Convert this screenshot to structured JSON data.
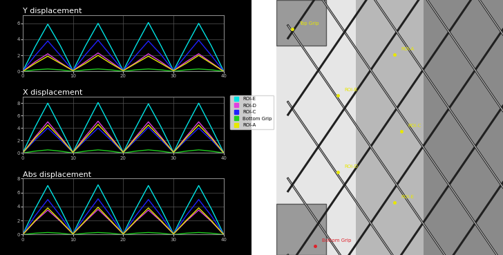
{
  "chart_data": [
    {
      "type": "line",
      "title": "Y displacement",
      "x": [
        0,
        2.5,
        5,
        7.5,
        10,
        12.5,
        15,
        17.5,
        20,
        22.5,
        25,
        27.5,
        30,
        32.5,
        35,
        37.5,
        40
      ],
      "xlim": [
        0,
        40
      ],
      "xticks": [
        0,
        10,
        20,
        30,
        40
      ],
      "ylim": [
        0,
        7
      ],
      "yticks": [
        0,
        2,
        4,
        6
      ],
      "grid": true,
      "series": [
        {
          "values": [
            0,
            3.1,
            5.9,
            3.2,
            0.1,
            3.2,
            6.0,
            3.1,
            0.1,
            3.2,
            6.1,
            3.2,
            0.1,
            3.1,
            6.0,
            3.2,
            0
          ]
        },
        {
          "values": [
            0,
            1.2,
            2.2,
            1.1,
            0.1,
            1.2,
            2.3,
            1.2,
            0.1,
            1.1,
            2.2,
            1.2,
            0.1,
            1.2,
            2.2,
            1.1,
            0
          ]
        },
        {
          "values": [
            0,
            2.0,
            3.8,
            2.0,
            0.1,
            2.1,
            3.9,
            2.0,
            0.1,
            2.0,
            3.8,
            2.1,
            0.1,
            2.0,
            3.9,
            2.0,
            0
          ]
        },
        {
          "values": [
            0,
            0.2,
            0.3,
            0.2,
            0,
            0.2,
            0.3,
            0.2,
            0,
            0.2,
            0.3,
            0.2,
            0,
            0.2,
            0.3,
            0.2,
            0
          ]
        },
        {
          "values": [
            0,
            1.0,
            1.9,
            1.0,
            0.1,
            1.0,
            2.0,
            1.0,
            0.1,
            1.0,
            1.9,
            1.0,
            0.1,
            1.0,
            2.0,
            1.0,
            0
          ]
        }
      ]
    },
    {
      "type": "line",
      "title": "X displacement",
      "x": [
        0,
        2.5,
        5,
        7.5,
        10,
        12.5,
        15,
        17.5,
        20,
        22.5,
        25,
        27.5,
        30,
        32.5,
        35,
        37.5,
        40
      ],
      "xlim": [
        0,
        40
      ],
      "xticks": [
        0,
        10,
        20,
        30,
        40
      ],
      "ylim": [
        0,
        9
      ],
      "yticks": [
        0,
        2,
        4,
        6,
        8
      ],
      "grid": true,
      "series": [
        {
          "values": [
            0,
            4.2,
            8.0,
            4.1,
            0.1,
            4.2,
            8.1,
            4.2,
            0.1,
            4.1,
            7.9,
            4.2,
            0.1,
            4.2,
            8.0,
            4.1,
            0
          ]
        },
        {
          "values": [
            0,
            2.6,
            5.0,
            2.6,
            0.1,
            2.7,
            5.1,
            2.6,
            0.1,
            2.6,
            5.0,
            2.6,
            0.1,
            2.6,
            5.0,
            2.6,
            0
          ]
        },
        {
          "values": [
            0,
            2.1,
            4.0,
            2.1,
            0.1,
            2.1,
            4.0,
            2.1,
            0.1,
            2.1,
            4.1,
            2.1,
            0.1,
            2.1,
            4.0,
            2.1,
            0
          ]
        },
        {
          "values": [
            0,
            0.3,
            0.5,
            0.3,
            0,
            0.3,
            0.5,
            0.3,
            0,
            0.3,
            0.5,
            0.3,
            0,
            0.3,
            0.5,
            0.3,
            0
          ]
        },
        {
          "values": [
            0,
            2.4,
            4.5,
            2.4,
            0.1,
            2.4,
            4.6,
            2.4,
            0.1,
            2.4,
            4.5,
            2.4,
            0.1,
            2.4,
            4.5,
            2.4,
            0
          ]
        }
      ]
    },
    {
      "type": "line",
      "title": "Abs displacement",
      "x": [
        0,
        2.5,
        5,
        7.5,
        10,
        12.5,
        15,
        17.5,
        20,
        22.5,
        25,
        27.5,
        30,
        32.5,
        35,
        37.5,
        40
      ],
      "xlim": [
        0,
        40
      ],
      "xticks": [
        0,
        10,
        20,
        30,
        40
      ],
      "ylim": [
        0,
        8
      ],
      "yticks": [
        0,
        2,
        4,
        6,
        8
      ],
      "grid": true,
      "series": [
        {
          "values": [
            0,
            3.7,
            7.0,
            3.7,
            0.1,
            3.7,
            7.1,
            3.7,
            0.1,
            3.7,
            7.0,
            3.7,
            0.1,
            3.7,
            7.0,
            3.7,
            0
          ]
        },
        {
          "values": [
            0,
            1.9,
            3.5,
            1.9,
            0.1,
            1.9,
            3.6,
            1.9,
            0.1,
            1.9,
            3.5,
            1.9,
            0.1,
            1.9,
            3.5,
            1.9,
            0
          ]
        },
        {
          "values": [
            0,
            2.7,
            5.0,
            2.7,
            0.1,
            2.7,
            5.1,
            2.7,
            0.1,
            2.7,
            5.0,
            2.7,
            0.1,
            2.7,
            5.0,
            2.7,
            0
          ]
        },
        {
          "values": [
            0,
            0.2,
            0.3,
            0.2,
            0,
            0.2,
            0.3,
            0.2,
            0,
            0.2,
            0.3,
            0.2,
            0,
            0.2,
            0.3,
            0.2,
            0
          ]
        },
        {
          "values": [
            0,
            2.0,
            3.8,
            2.0,
            0.1,
            2.0,
            3.9,
            2.0,
            0.1,
            2.0,
            3.8,
            2.0,
            0.1,
            2.0,
            3.8,
            2.0,
            0
          ]
        }
      ]
    }
  ],
  "legend": "center left",
  "legend_entries": [
    {
      "name": "ROI-E",
      "color": "#00e5e5"
    },
    {
      "name": "ROI-D",
      "color": "#e040e0"
    },
    {
      "name": "ROI-C",
      "color": "#2020ff"
    },
    {
      "name": "Bottom Grip",
      "color": "#20d020"
    },
    {
      "name": "ROI-A",
      "color": "#e8e800"
    }
  ],
  "photo": {
    "labels": [
      "Top Grip",
      "ROI-A",
      "ROI-B",
      "ROI-C",
      "ROI-D",
      "ROI-E",
      "Bottom Grip"
    ]
  }
}
